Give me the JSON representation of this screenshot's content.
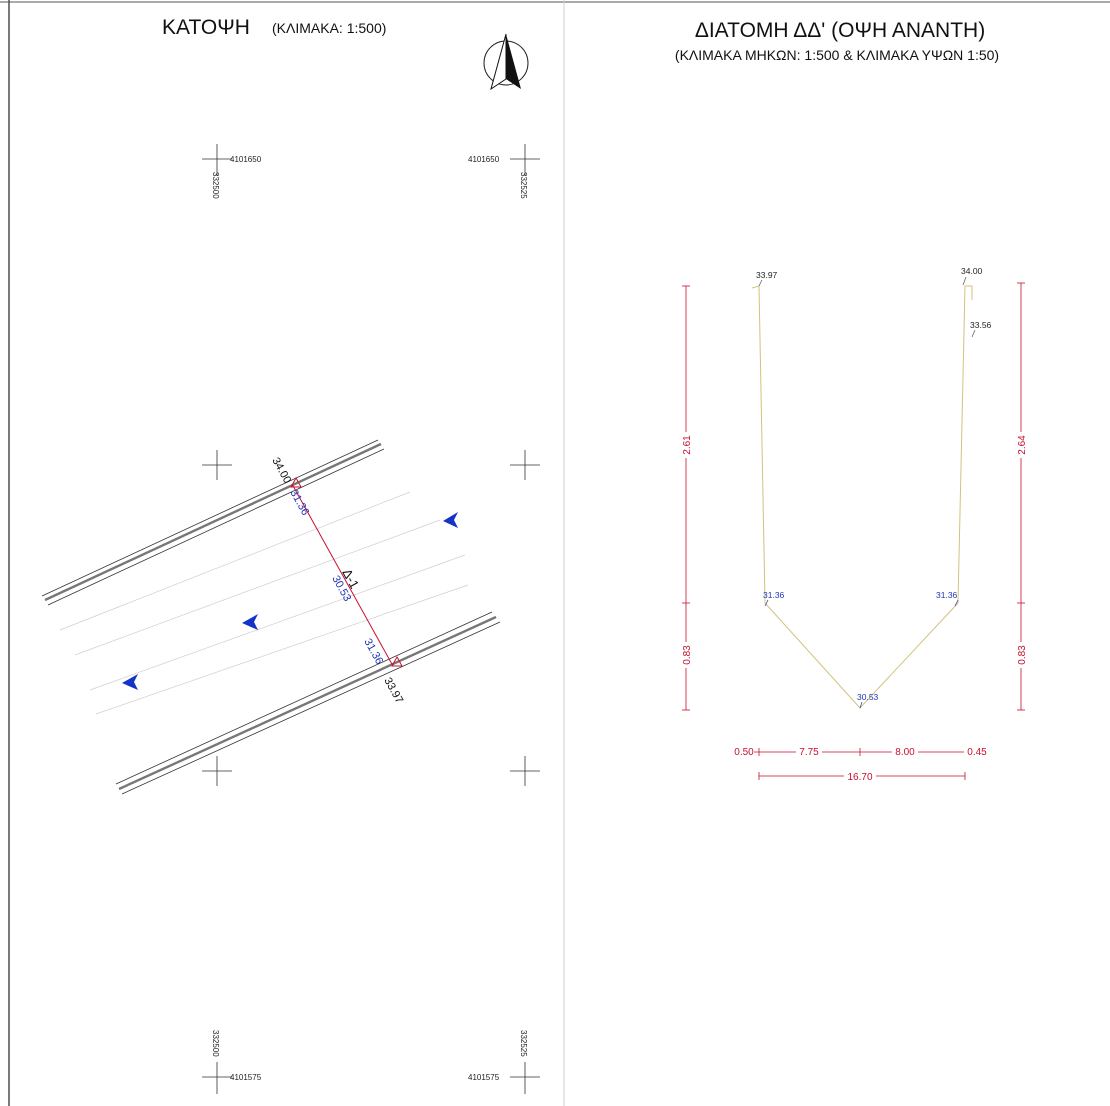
{
  "plan": {
    "title": "ΚΑΤΟΨΗ",
    "scale": "(ΚΛΙΜΑΚΑ: 1:500)",
    "grid": {
      "top_north": "4101650",
      "bottom_north": "4101575",
      "left_east": "332500",
      "right_east": "332525"
    },
    "section_label": "Δ-1",
    "elevations": {
      "top_bank": "34.00",
      "top_bed": "31.36",
      "center": "30.53",
      "bottom_bed": "31.36",
      "bottom_bank": "33.97"
    },
    "flow_arrows": 3,
    "north_arrow_icon": "north-arrow-icon",
    "colors": {
      "section_line": "#c8102e",
      "elev_blue": "#1f35b8",
      "flow_arrow": "#1433c8"
    }
  },
  "section": {
    "title": "ΔΙΑΤΟΜΗ ΔΔ' (ΟΨΗ ΑΝΑΝΤΗ)",
    "subtitle": "(ΚΛΙΜΑΚΑ ΜΗΚΩΝ: 1:500 & ΚΛΙΜΑΚΑ ΥΨΩΝ 1:50)",
    "elevations": {
      "left_top": "33.97",
      "right_top": "34.00",
      "right_step": "33.56",
      "left_bottom": "31.36",
      "right_bottom": "31.36",
      "bed": "30.53"
    },
    "heights": {
      "left_upper": "2.61",
      "left_lower": "0.83",
      "right_upper": "2.64",
      "right_lower": "0.83"
    },
    "widths": {
      "w1": "0.50",
      "w2": "7.75",
      "w3": "8.00",
      "w4": "0.45",
      "total": "16.70"
    },
    "colors": {
      "profile": "#d4c27a",
      "dimension": "#c8102e",
      "elev_blue": "#1f35b8"
    }
  }
}
